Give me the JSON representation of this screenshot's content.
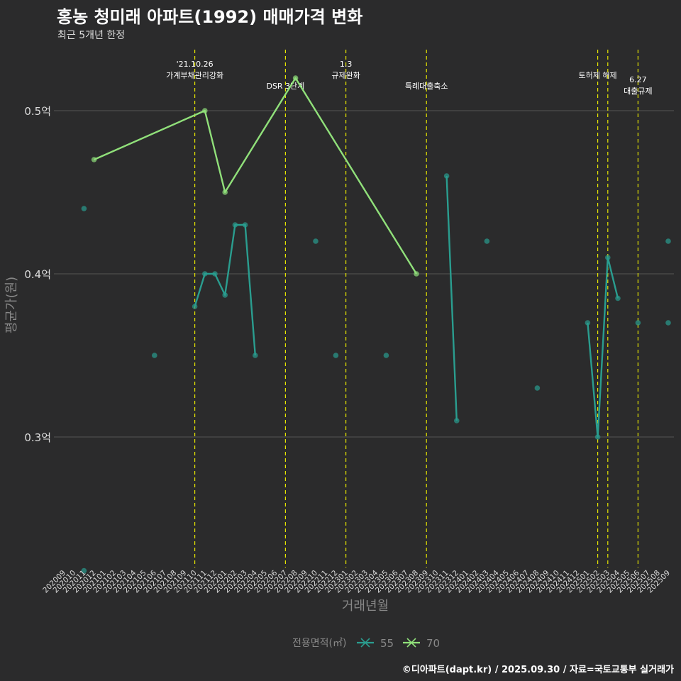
{
  "title": "홍농 청미래 아파트(1992) 매매가격 변화",
  "subtitle": "최근 5개년 한정",
  "caption": "©디아파트(dapt.kr) / 2025.09.30 / 자료=국토교통부 실거래가",
  "colors": {
    "background": "#2b2b2c",
    "grid": "#555555",
    "event_line": "#e6e600",
    "series_55": "#2a9d8f",
    "series_70": "#90e07a",
    "text_muted": "#888888"
  },
  "chart_data": {
    "type": "line",
    "title": "홍농 청미래 아파트(1992) 매매가격 변화",
    "subtitle": "최근 5개년 한정",
    "xlabel": "거래년월",
    "ylabel": "평균가(원)",
    "ylim": [
      0.22,
      0.54
    ],
    "yticks": [
      {
        "value": 0.3,
        "label": "0.3억"
      },
      {
        "value": 0.4,
        "label": "0.4억"
      },
      {
        "value": 0.5,
        "label": "0.5억"
      }
    ],
    "categories": [
      "202009",
      "202010",
      "202011",
      "202012",
      "202101",
      "202102",
      "202103",
      "202104",
      "202105",
      "202106",
      "202107",
      "202108",
      "202109",
      "202110",
      "202111",
      "202112",
      "202201",
      "202202",
      "202203",
      "202204",
      "202205",
      "202206",
      "202207",
      "202208",
      "202209",
      "202210",
      "202211",
      "202212",
      "202301",
      "202302",
      "202303",
      "202304",
      "202305",
      "202306",
      "202307",
      "202308",
      "202309",
      "202310",
      "202311",
      "202312",
      "202401",
      "202402",
      "202403",
      "202404",
      "202405",
      "202406",
      "202407",
      "202408",
      "202409",
      "202410",
      "202411",
      "202412",
      "202501",
      "202502",
      "202503",
      "202504",
      "202505",
      "202506",
      "202507",
      "202508",
      "202509"
    ],
    "legend_title": "전용면적(㎡)",
    "series": [
      {
        "name": "55",
        "points": [
          {
            "x": "202011",
            "y": 0.44
          },
          {
            "x": "202011",
            "y": 0.218
          },
          {
            "x": "202106",
            "y": 0.35
          },
          {
            "x": "202110",
            "y": 0.38
          },
          {
            "x": "202111",
            "y": 0.4
          },
          {
            "x": "202112",
            "y": 0.4
          },
          {
            "x": "202201",
            "y": 0.387
          },
          {
            "x": "202202",
            "y": 0.43
          },
          {
            "x": "202203",
            "y": 0.43
          },
          {
            "x": "202204",
            "y": 0.35
          },
          {
            "x": "202210",
            "y": 0.42
          },
          {
            "x": "202212",
            "y": 0.35
          },
          {
            "x": "202305",
            "y": 0.35
          },
          {
            "x": "202311",
            "y": 0.46
          },
          {
            "x": "202312",
            "y": 0.31
          },
          {
            "x": "202403",
            "y": 0.42
          },
          {
            "x": "202408",
            "y": 0.33
          },
          {
            "x": "202501",
            "y": 0.37
          },
          {
            "x": "202502",
            "y": 0.3
          },
          {
            "x": "202503",
            "y": 0.41
          },
          {
            "x": "202504",
            "y": 0.385
          },
          {
            "x": "202506",
            "y": 0.37
          },
          {
            "x": "202509",
            "y": 0.42
          },
          {
            "x": "202509",
            "y": 0.37
          }
        ],
        "line_segments": [
          [
            "202110",
            "202111",
            "202112",
            "202201",
            "202202",
            "202203",
            "202204"
          ],
          [
            "202311",
            "202312"
          ],
          [
            "202501",
            "202502",
            "202503",
            "202504"
          ]
        ]
      },
      {
        "name": "70",
        "points": [
          {
            "x": "202012",
            "y": 0.47
          },
          {
            "x": "202111",
            "y": 0.5
          },
          {
            "x": "202201",
            "y": 0.45
          },
          {
            "x": "202208",
            "y": 0.52
          },
          {
            "x": "202308",
            "y": 0.4
          }
        ],
        "line_segments": [
          [
            "202012",
            "202111",
            "202201",
            "202208",
            "202308"
          ]
        ]
      }
    ],
    "events": [
      {
        "x": "202110",
        "lines": [
          "'21.10.26",
          "가계부채관리강화"
        ],
        "level": 0
      },
      {
        "x": "202207",
        "lines": [
          "DSR 3단계"
        ],
        "level": 2
      },
      {
        "x": "202301",
        "lines": [
          "1.3",
          "규제완화"
        ],
        "level": 0
      },
      {
        "x": "202309",
        "lines": [
          "특례대출축소"
        ],
        "level": 2
      },
      {
        "x": "202502",
        "lines": [
          "토허제 해제"
        ],
        "level": 1
      },
      {
        "x": "202503",
        "lines": [],
        "level": 1
      },
      {
        "x": "202506",
        "lines": [
          "6.27",
          "대출규제"
        ],
        "level": 3
      }
    ]
  }
}
